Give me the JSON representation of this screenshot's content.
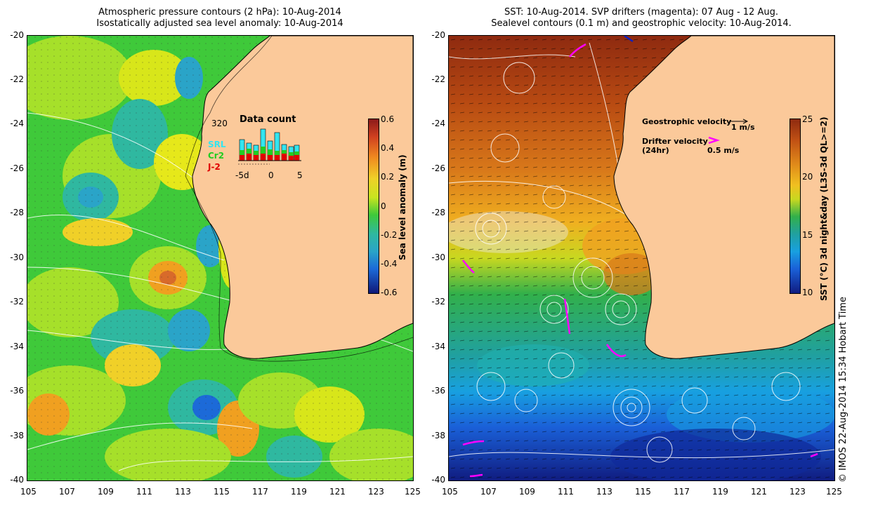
{
  "left_panel": {
    "title_line1": "Atmospheric pressure contours (2 hPa): 10-Aug-2014",
    "title_line2": "Isostatically adjusted sea level anomaly: 10-Aug-2014",
    "x_ticks": [
      "105",
      "107",
      "109",
      "111",
      "113",
      "115",
      "117",
      "119",
      "121",
      "123",
      "125"
    ],
    "y_ticks": [
      "-20",
      "-22",
      "-24",
      "-26",
      "-28",
      "-30",
      "-32",
      "-34",
      "-36",
      "-38",
      "-40"
    ],
    "colorbar": {
      "label": "Sea level anomaly (m)",
      "ticks": [
        "0.6",
        "0.4",
        "0.2",
        "0",
        "-0.2",
        "-0.4",
        "-0.6"
      ]
    },
    "data_count": {
      "title": "Data count",
      "max_label": "320",
      "x_labels": [
        "-5d",
        "0",
        "5"
      ],
      "satellites": [
        {
          "name": "SRL",
          "color": "#33e5f0"
        },
        {
          "name": "Cr2",
          "color": "#22cc22"
        },
        {
          "name": "J-2",
          "color": "#e00000"
        }
      ]
    }
  },
  "right_panel": {
    "title_line1": "SST: 10-Aug-2014. SVP drifters (magenta): 07 Aug - 12 Aug.",
    "title_line2": "Sealevel contours (0.1 m) and geostrophic velocity: 10-Aug-2014.",
    "x_ticks": [
      "105",
      "107",
      "109",
      "111",
      "113",
      "115",
      "117",
      "119",
      "121",
      "123",
      "125"
    ],
    "y_ticks": [
      "-20",
      "-22",
      "-24",
      "-26",
      "-28",
      "-30",
      "-32",
      "-34",
      "-36",
      "-38",
      "-40"
    ],
    "legend": {
      "geostrophic_label": "Geostrophic velocity",
      "geostrophic_scale": "1 m/s",
      "drifter_label": "Drifter velocity",
      "drifter_period": "(24hr)",
      "drifter_scale": "0.5 m/s"
    },
    "colorbar": {
      "label": "SST (°C) 3d night&day (L3S-3d QL>=2)",
      "ticks": [
        "25",
        "20",
        "15",
        "10"
      ]
    }
  },
  "credit": "© IMOS 22-Aug-2014 15:34 Hobart Time",
  "colors": {
    "land": "#fbc99a",
    "drifter": "#ff00ff"
  }
}
